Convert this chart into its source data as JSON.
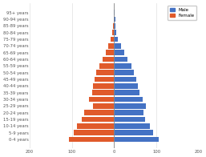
{
  "age_groups": [
    "0-4 years",
    "5-9 years",
    "10-14 years",
    "15-19 years",
    "20-24 years",
    "25-29 years",
    "30-34 years",
    "35-39 years",
    "40-44 years",
    "45-49 years",
    "50-54 years",
    "55-59 years",
    "60-64 years",
    "65-69 years",
    "70-74 years",
    "75-79 years",
    "80-84 years",
    "85-89 years",
    "90-94 years",
    "95+ years"
  ],
  "male": [
    105,
    92,
    85,
    74,
    70,
    75,
    68,
    60,
    57,
    52,
    47,
    40,
    32,
    24,
    16,
    9,
    5,
    3,
    2,
    1
  ],
  "female": [
    -108,
    -95,
    -88,
    -76,
    -72,
    -50,
    -60,
    -53,
    -50,
    -47,
    -42,
    -35,
    -28,
    -20,
    -14,
    -8,
    -4,
    -2,
    -1,
    -1
  ],
  "male_color": "#4472C4",
  "female_color": "#E05A2B",
  "background_color": "#ffffff",
  "xlim": [
    -200,
    200
  ],
  "xticks": [
    -200,
    -100,
    0,
    100,
    200
  ],
  "grid_color": "#e0e0e0",
  "bar_height": 0.8,
  "legend_male": "Male",
  "legend_female": "Female"
}
